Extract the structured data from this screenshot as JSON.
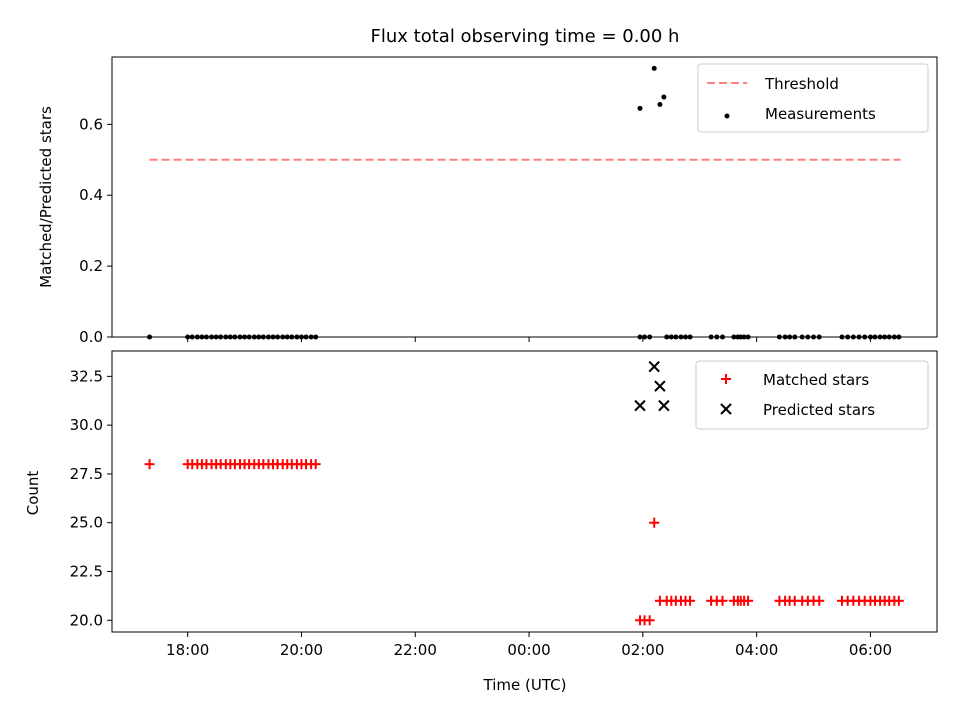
{
  "chart_data": [
    {
      "type": "scatter",
      "title": "Flux total observing time = 0.00 h",
      "ylabel": "Matched/Predicted stars",
      "xlabel": "",
      "ylim": [
        0,
        0.79
      ],
      "yticks": [
        "0.0",
        "0.2",
        "0.4",
        "0.6"
      ],
      "ytick_values": [
        0,
        0.2,
        0.4,
        0.6
      ],
      "threshold": {
        "name": "Threshold",
        "value": 0.5,
        "x_start": 17.33,
        "x_end": 30.53,
        "color": "#ff7f7f"
      },
      "legend": {
        "placement": "top-right",
        "entries": [
          "Threshold",
          "Measurements"
        ]
      },
      "series": [
        {
          "name": "Measurements",
          "color": "#000000",
          "marker": "dot",
          "points": [
            [
              17.33,
              0.0
            ],
            [
              18.0,
              0.0
            ],
            [
              18.08,
              0.0
            ],
            [
              18.17,
              0.0
            ],
            [
              18.25,
              0.0
            ],
            [
              18.33,
              0.0
            ],
            [
              18.42,
              0.0
            ],
            [
              18.5,
              0.0
            ],
            [
              18.58,
              0.0
            ],
            [
              18.67,
              0.0
            ],
            [
              18.75,
              0.0
            ],
            [
              18.83,
              0.0
            ],
            [
              18.92,
              0.0
            ],
            [
              19.0,
              0.0
            ],
            [
              19.08,
              0.0
            ],
            [
              19.17,
              0.0
            ],
            [
              19.25,
              0.0
            ],
            [
              19.33,
              0.0
            ],
            [
              19.42,
              0.0
            ],
            [
              19.5,
              0.0
            ],
            [
              19.58,
              0.0
            ],
            [
              19.67,
              0.0
            ],
            [
              19.75,
              0.0
            ],
            [
              19.83,
              0.0
            ],
            [
              19.92,
              0.0
            ],
            [
              20.0,
              0.0
            ],
            [
              20.08,
              0.0
            ],
            [
              20.17,
              0.0
            ],
            [
              20.25,
              0.0
            ],
            [
              25.95,
              0.0
            ],
            [
              26.03,
              0.0
            ],
            [
              26.12,
              0.0
            ],
            [
              26.42,
              0.0
            ],
            [
              26.5,
              0.0
            ],
            [
              26.58,
              0.0
            ],
            [
              26.67,
              0.0
            ],
            [
              26.75,
              0.0
            ],
            [
              26.83,
              0.0
            ],
            [
              27.2,
              0.0
            ],
            [
              27.3,
              0.0
            ],
            [
              27.4,
              0.0
            ],
            [
              27.6,
              0.0
            ],
            [
              27.67,
              0.0
            ],
            [
              27.72,
              0.0
            ],
            [
              27.78,
              0.0
            ],
            [
              27.85,
              0.0
            ],
            [
              28.4,
              0.0
            ],
            [
              28.5,
              0.0
            ],
            [
              28.58,
              0.0
            ],
            [
              28.67,
              0.0
            ],
            [
              28.8,
              0.0
            ],
            [
              28.9,
              0.0
            ],
            [
              29.0,
              0.0
            ],
            [
              29.1,
              0.0
            ],
            [
              29.5,
              0.0
            ],
            [
              29.6,
              0.0
            ],
            [
              29.7,
              0.0
            ],
            [
              29.8,
              0.0
            ],
            [
              29.9,
              0.0
            ],
            [
              30.0,
              0.0
            ],
            [
              30.08,
              0.0
            ],
            [
              30.17,
              0.0
            ],
            [
              30.25,
              0.0
            ],
            [
              30.33,
              0.0
            ],
            [
              30.42,
              0.0
            ],
            [
              30.5,
              0.0
            ],
            [
              25.95,
              0.645
            ],
            [
              26.2,
              0.758
            ],
            [
              26.3,
              0.656
            ],
            [
              26.37,
              0.677
            ]
          ]
        }
      ]
    },
    {
      "type": "scatter",
      "title": "",
      "xlabel": "Time (UTC)",
      "ylabel": "Count",
      "ylim": [
        19.4,
        33.8
      ],
      "xlim": [
        16.67,
        31.17
      ],
      "yticks": [
        "20.0",
        "22.5",
        "25.0",
        "27.5",
        "30.0",
        "32.5"
      ],
      "ytick_values": [
        20.0,
        22.5,
        25.0,
        27.5,
        30.0,
        32.5
      ],
      "xticks": [
        "18:00",
        "20:00",
        "22:00",
        "00:00",
        "02:00",
        "04:00",
        "06:00"
      ],
      "xtick_values": [
        18,
        20,
        22,
        24,
        26,
        28,
        30
      ],
      "legend": {
        "placement": "top-right",
        "entries": [
          "Matched stars",
          "Predicted stars"
        ]
      },
      "series": [
        {
          "name": "Matched stars",
          "color": "#ff0000",
          "marker": "plus",
          "points": [
            [
              17.33,
              28
            ],
            [
              18.0,
              28
            ],
            [
              18.08,
              28
            ],
            [
              18.17,
              28
            ],
            [
              18.25,
              28
            ],
            [
              18.33,
              28
            ],
            [
              18.42,
              28
            ],
            [
              18.5,
              28
            ],
            [
              18.58,
              28
            ],
            [
              18.67,
              28
            ],
            [
              18.75,
              28
            ],
            [
              18.83,
              28
            ],
            [
              18.92,
              28
            ],
            [
              19.0,
              28
            ],
            [
              19.08,
              28
            ],
            [
              19.17,
              28
            ],
            [
              19.25,
              28
            ],
            [
              19.33,
              28
            ],
            [
              19.42,
              28
            ],
            [
              19.5,
              28
            ],
            [
              19.58,
              28
            ],
            [
              19.67,
              28
            ],
            [
              19.75,
              28
            ],
            [
              19.83,
              28
            ],
            [
              19.92,
              28
            ],
            [
              20.0,
              28
            ],
            [
              20.08,
              28
            ],
            [
              20.17,
              28
            ],
            [
              20.25,
              28
            ],
            [
              25.95,
              20
            ],
            [
              26.03,
              20
            ],
            [
              26.12,
              20
            ],
            [
              26.2,
              25
            ],
            [
              26.3,
              21
            ],
            [
              26.42,
              21
            ],
            [
              26.5,
              21
            ],
            [
              26.58,
              21
            ],
            [
              26.67,
              21
            ],
            [
              26.75,
              21
            ],
            [
              26.83,
              21
            ],
            [
              27.2,
              21
            ],
            [
              27.3,
              21
            ],
            [
              27.4,
              21
            ],
            [
              27.6,
              21
            ],
            [
              27.67,
              21
            ],
            [
              27.72,
              21
            ],
            [
              27.78,
              21
            ],
            [
              27.85,
              21
            ],
            [
              28.4,
              21
            ],
            [
              28.5,
              21
            ],
            [
              28.58,
              21
            ],
            [
              28.67,
              21
            ],
            [
              28.8,
              21
            ],
            [
              28.9,
              21
            ],
            [
              29.0,
              21
            ],
            [
              29.1,
              21
            ],
            [
              29.5,
              21
            ],
            [
              29.6,
              21
            ],
            [
              29.7,
              21
            ],
            [
              29.8,
              21
            ],
            [
              29.9,
              21
            ],
            [
              30.0,
              21
            ],
            [
              30.08,
              21
            ],
            [
              30.17,
              21
            ],
            [
              30.25,
              21
            ],
            [
              30.33,
              21
            ],
            [
              30.42,
              21
            ],
            [
              30.5,
              21
            ]
          ]
        },
        {
          "name": "Predicted stars",
          "color": "#000000",
          "marker": "x",
          "points": [
            [
              25.95,
              31
            ],
            [
              26.2,
              33
            ],
            [
              26.3,
              32
            ],
            [
              26.37,
              31
            ]
          ]
        }
      ]
    }
  ]
}
